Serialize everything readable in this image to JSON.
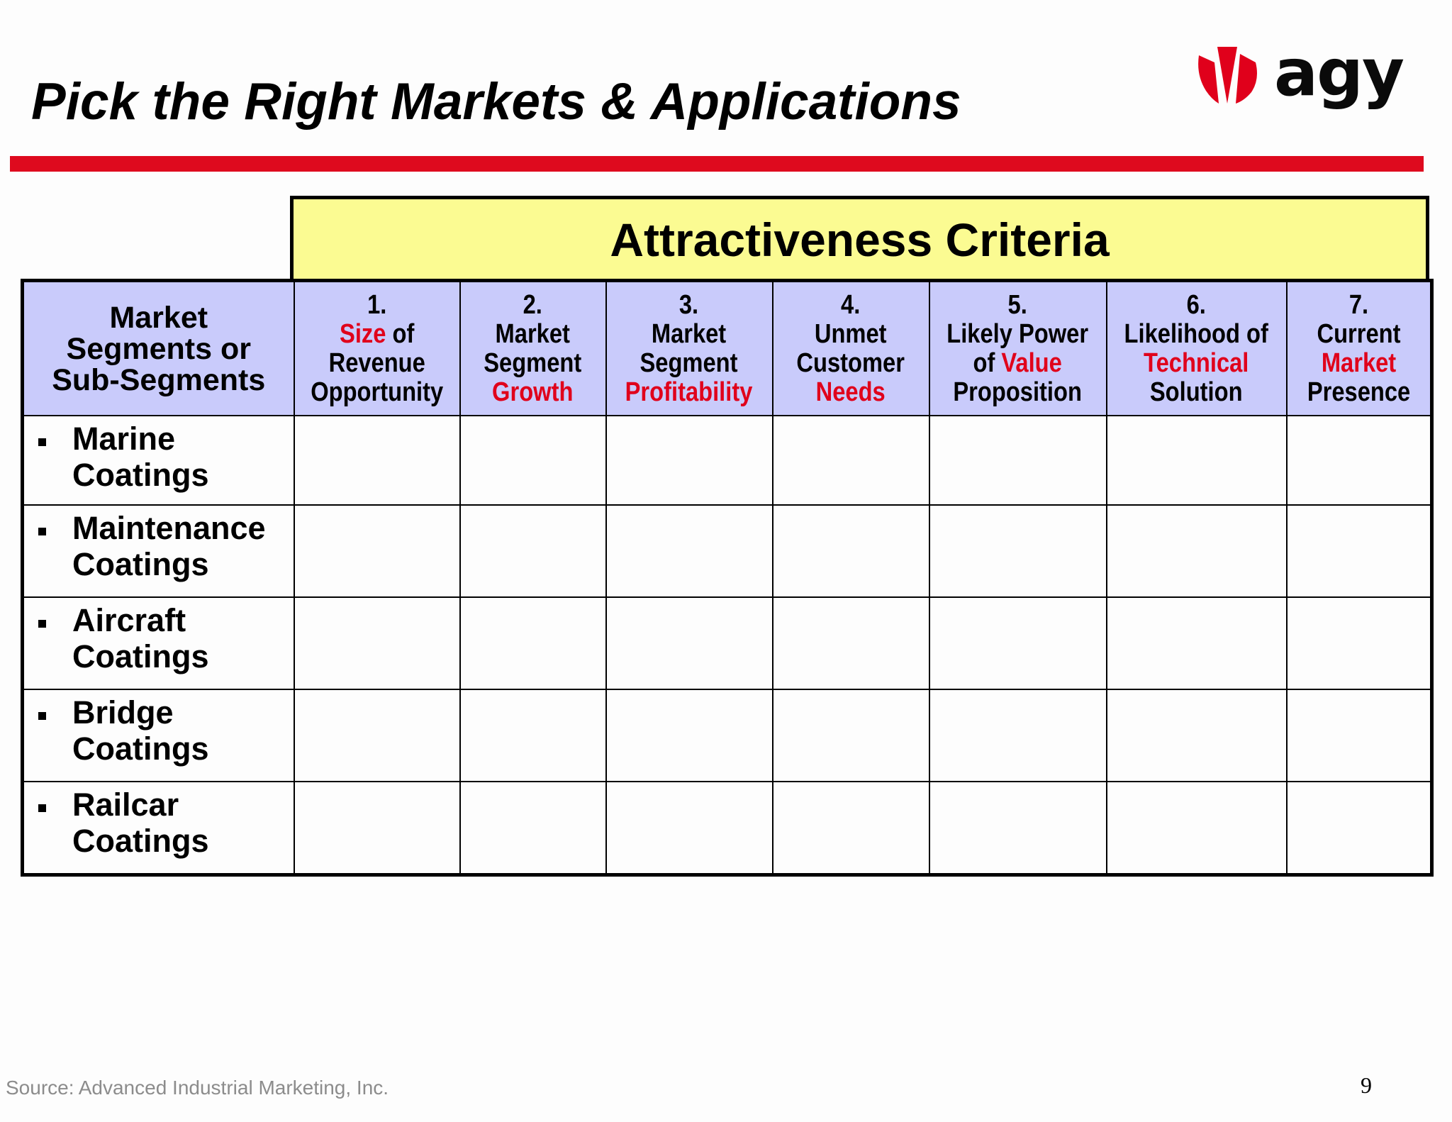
{
  "slide": {
    "title": "Pick the Right Markets & Applications",
    "logo_text": "agy",
    "accent_color": "#de0a1e",
    "header_fill": "#c9cbfb",
    "criteria_fill": "#fbfb92",
    "criteria_heading": "Attractiveness Criteria",
    "segment_column_header": {
      "line1": "Market",
      "line2": "Segments or",
      "line3": "Sub-Segments"
    },
    "criteria": [
      {
        "number": "1.",
        "line2a": "Size",
        "line2b": " of",
        "line3": "Revenue",
        "line4": "Opportunity"
      },
      {
        "number": "2.",
        "line2": "Market",
        "line3": "Segment",
        "line4": "Growth"
      },
      {
        "number": "3.",
        "line2": "Market",
        "line3": "Segment",
        "line4": "Profitability"
      },
      {
        "number": "4.",
        "line2": "Unmet",
        "line3": "Customer",
        "line4": "Needs"
      },
      {
        "number": "5.",
        "line2": "Likely Power",
        "line3a": "of ",
        "line3b": "Value",
        "line4": "Proposition"
      },
      {
        "number": "6.",
        "line2": "Likelihood of",
        "line3": "Technical",
        "line4": "Solution"
      },
      {
        "number": "7.",
        "line2": "Current",
        "line3": "Market",
        "line4": "Presence"
      }
    ],
    "segments": [
      {
        "line1": "Marine",
        "line2": "Coatings"
      },
      {
        "line1": "Maintenance",
        "line2": "Coatings"
      },
      {
        "line1": "Aircraft",
        "line2": "Coatings"
      },
      {
        "line1": "Bridge",
        "line2": "Coatings"
      },
      {
        "line1": "Railcar",
        "line2": "Coatings"
      }
    ],
    "source": "Source: Advanced Industrial Marketing, Inc.",
    "page_number": "9"
  }
}
